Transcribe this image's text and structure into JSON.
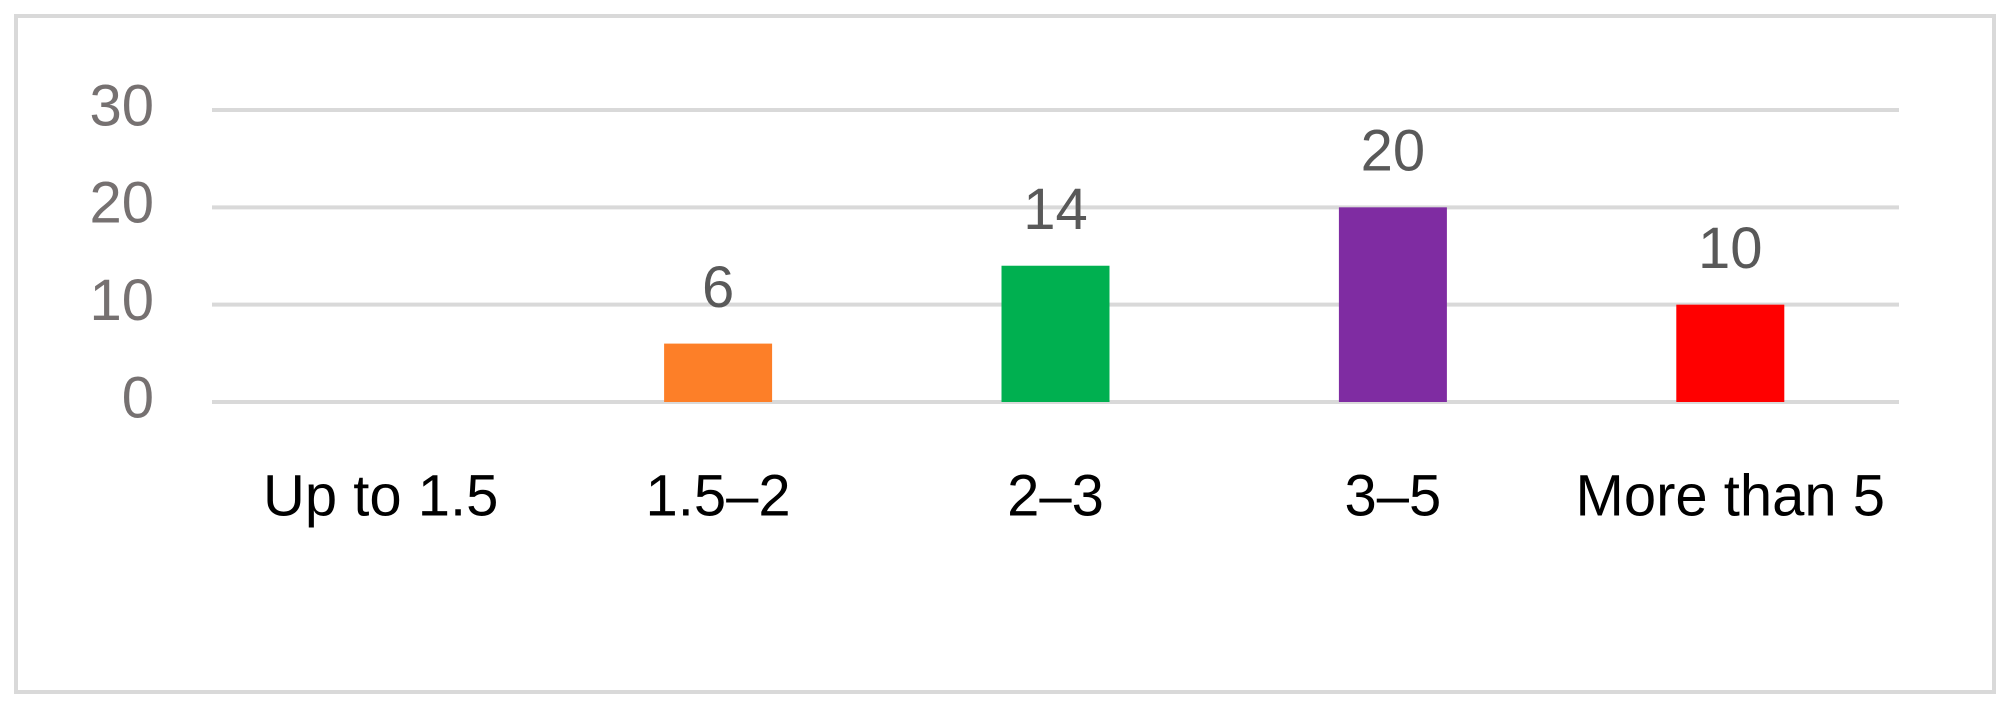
{
  "chart_data": {
    "type": "bar",
    "categories": [
      "Up to 1.5",
      "1.5–2",
      "2–3",
      "3–5",
      "More than 5"
    ],
    "values": [
      null,
      6,
      14,
      20,
      10
    ],
    "colors": [
      null,
      "#fd7f28",
      "#00b050",
      "#7f2ca2",
      "#ff0000"
    ],
    "ylim": [
      0,
      30
    ],
    "yticks": [
      0,
      10,
      20,
      30
    ],
    "grid": true
  }
}
